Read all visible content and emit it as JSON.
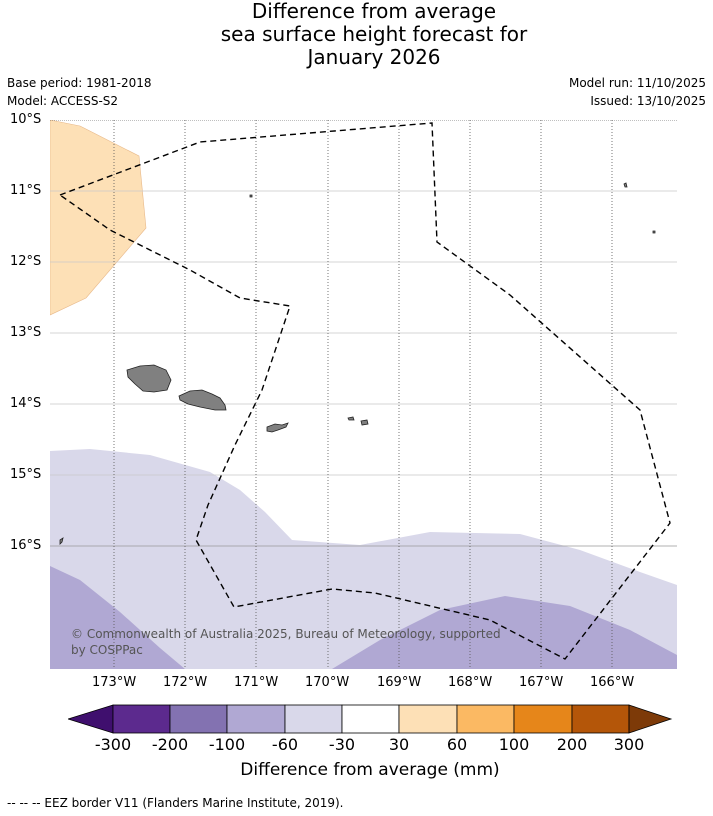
{
  "title_lines": [
    "Difference from average",
    "sea surface height forecast for",
    "January 2026"
  ],
  "meta": {
    "base_period": "Base period: 1981-2018",
    "model": "Model: ACCESS-S2",
    "model_run": "Model run: 11/10/2025",
    "issued": "Issued: 13/10/2025"
  },
  "latitude_labels": [
    "10°S",
    "11°S",
    "12°S",
    "13°S",
    "14°S",
    "15°S",
    "16°S"
  ],
  "longitude_labels": [
    "173°W",
    "172°W",
    "171°W",
    "170°W",
    "169°W",
    "168°W",
    "167°W",
    "166°W"
  ],
  "copyright": "© Commonwealth of Australia 2025, Bureau of Meteorology, supported by COSPPac",
  "colorbar": {
    "title": "Difference from average (mm)",
    "ticks": [
      "-300",
      "-200",
      "-100",
      "-60",
      "-30",
      "30",
      "60",
      "100",
      "200",
      "300"
    ],
    "colors": [
      "#3f0f6e",
      "#5c2a8e",
      "#8372b1",
      "#b0a8d3",
      "#d9d8ea",
      "#ffffff",
      "#fde0b6",
      "#fbb963",
      "#e6861a",
      "#b45609",
      "#7d3a08"
    ]
  },
  "legend": {
    "eez_label": "--  --  -- EEZ border V11 (Flanders Marine Institute, 2019)."
  },
  "map_regions": {
    "positive_30_60": "#fde0b6",
    "negative_30_60": "#d9d8ea",
    "negative_60_100": "#b0a8d3",
    "land": "#808080"
  }
}
